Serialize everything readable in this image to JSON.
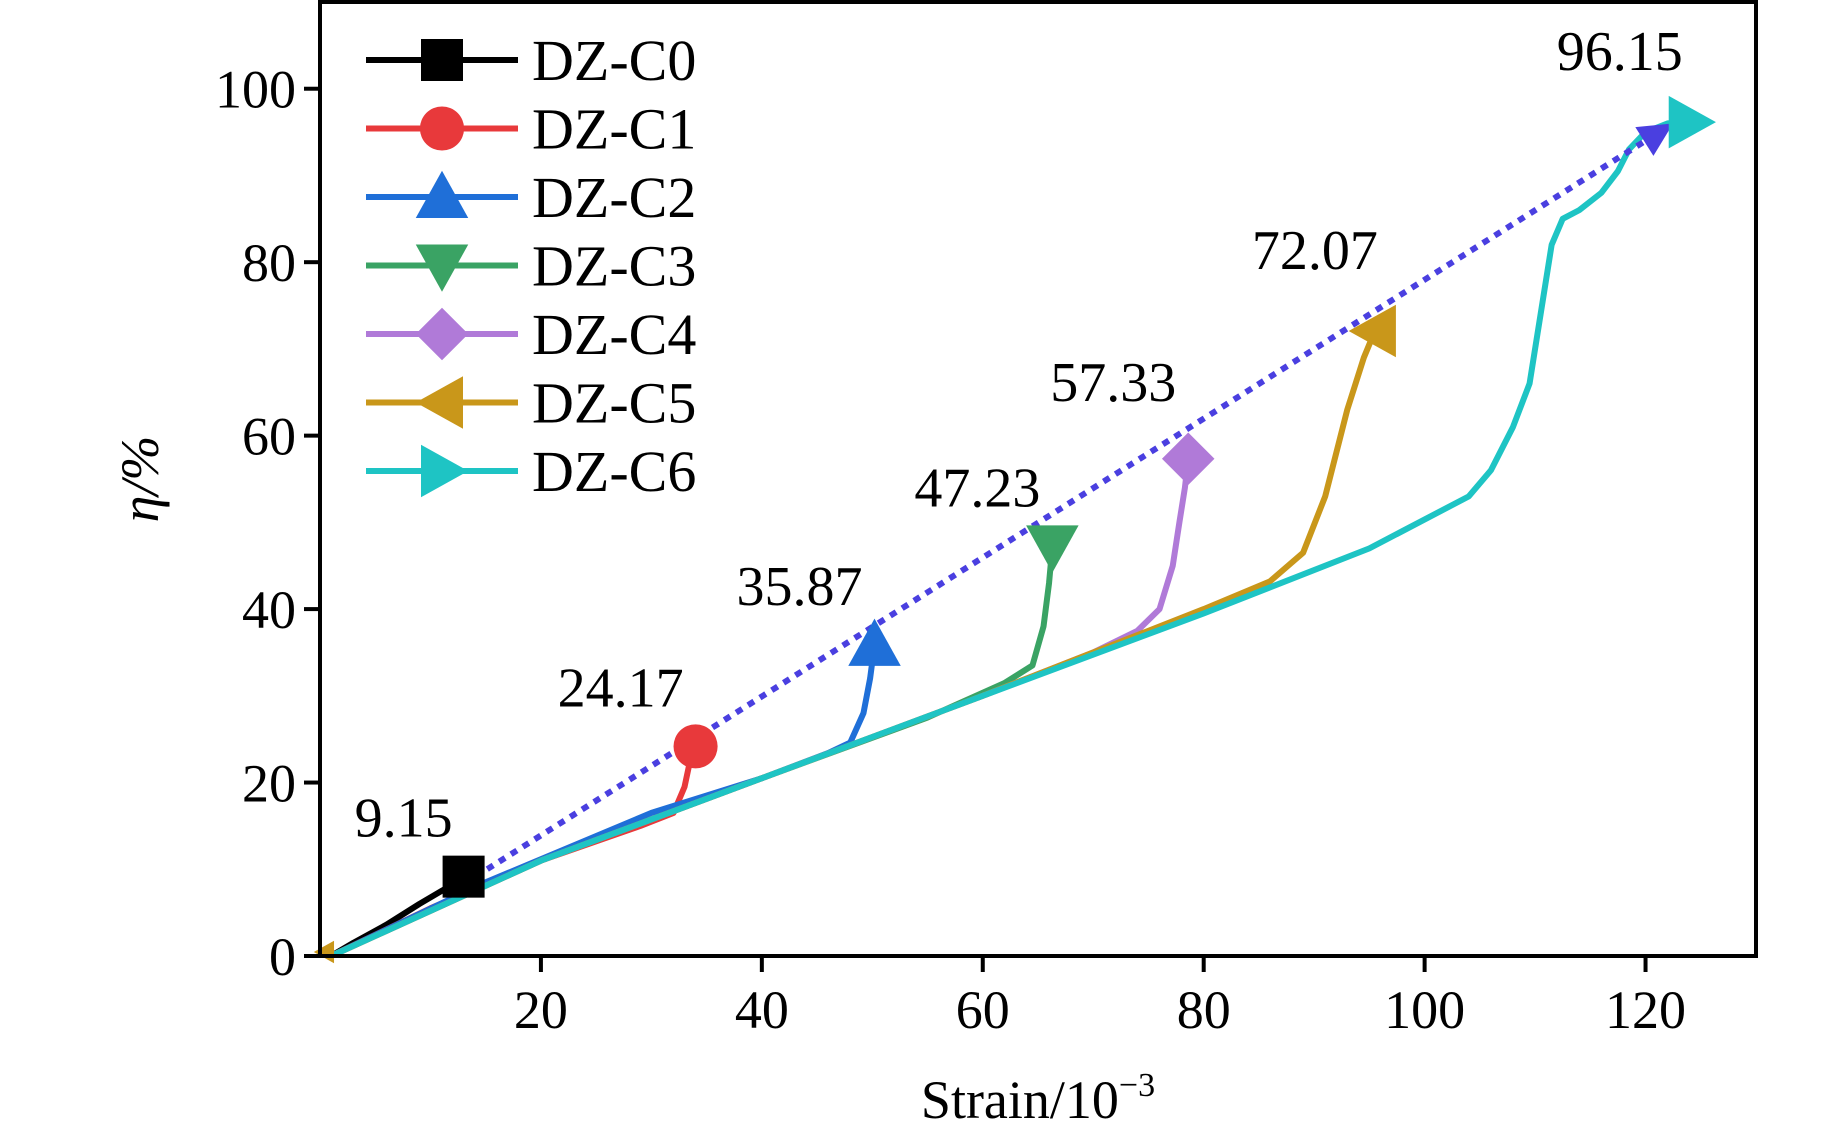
{
  "chart_data": {
    "type": "line",
    "xlabel": "Strain/10",
    "xlabel_exponent": "−3",
    "ylabel": "η/%",
    "xlim": [
      0,
      130
    ],
    "ylim": [
      0,
      110
    ],
    "x_ticks": [
      20,
      40,
      60,
      80,
      100,
      120
    ],
    "y_ticks": [
      0,
      20,
      40,
      60,
      80,
      100
    ],
    "grid": false,
    "legend_position": "top-left",
    "series": [
      {
        "name": "DZ-C0",
        "color": "#000000",
        "marker": "square",
        "points": [
          [
            1,
            0
          ],
          [
            3,
            1.5
          ],
          [
            6,
            3.6
          ],
          [
            9,
            6.0
          ],
          [
            11,
            7.5
          ],
          [
            12.5,
            8.6
          ],
          [
            13,
            9.15
          ]
        ]
      },
      {
        "name": "DZ-C1",
        "color": "#e8393b",
        "marker": "circle",
        "points": [
          [
            1,
            0
          ],
          [
            10,
            5.5
          ],
          [
            20,
            11
          ],
          [
            29,
            15.0
          ],
          [
            32,
            16.5
          ],
          [
            33,
            19.5
          ],
          [
            33.5,
            22.5
          ],
          [
            34,
            24.17
          ]
        ]
      },
      {
        "name": "DZ-C2",
        "color": "#1f6fd8",
        "marker": "triangle-up",
        "points": [
          [
            1,
            0
          ],
          [
            15,
            8.5
          ],
          [
            30,
            16.5
          ],
          [
            40,
            20.5
          ],
          [
            46,
            23.4
          ],
          [
            48,
            24.6
          ],
          [
            49.2,
            28
          ],
          [
            49.8,
            32
          ],
          [
            50.2,
            35.87
          ]
        ]
      },
      {
        "name": "DZ-C3",
        "color": "#3aa364",
        "marker": "triangle-down",
        "points": [
          [
            1,
            0
          ],
          [
            20,
            11
          ],
          [
            40,
            20.5
          ],
          [
            55,
            27.5
          ],
          [
            62,
            31.5
          ],
          [
            64.5,
            33.5
          ],
          [
            65.5,
            38
          ],
          [
            66,
            43
          ],
          [
            66.3,
            47.23
          ]
        ]
      },
      {
        "name": "DZ-C4",
        "color": "#b07ad8",
        "marker": "diamond",
        "points": [
          [
            1,
            0
          ],
          [
            20,
            11
          ],
          [
            40,
            20.5
          ],
          [
            60,
            30
          ],
          [
            70,
            35
          ],
          [
            74,
            37.5
          ],
          [
            76,
            40
          ],
          [
            77.2,
            45
          ],
          [
            77.8,
            50
          ],
          [
            78.3,
            54
          ],
          [
            78.6,
            57.33
          ]
        ]
      },
      {
        "name": "DZ-C5",
        "color": "#c9971a",
        "marker": "triangle-left",
        "points": [
          [
            1,
            0
          ],
          [
            20,
            11
          ],
          [
            40,
            20.5
          ],
          [
            60,
            30
          ],
          [
            80,
            40
          ],
          [
            86,
            43.2
          ],
          [
            89,
            46.5
          ],
          [
            91,
            53
          ],
          [
            93,
            63
          ],
          [
            94.5,
            69
          ],
          [
            95.5,
            72.07
          ]
        ]
      },
      {
        "name": "DZ-C6",
        "color": "#1ec4c4",
        "marker": "triangle-right",
        "points": [
          [
            1,
            0
          ],
          [
            20,
            11
          ],
          [
            40,
            20.5
          ],
          [
            60,
            30
          ],
          [
            80,
            39.5
          ],
          [
            95,
            47
          ],
          [
            104,
            53
          ],
          [
            106,
            56
          ],
          [
            108,
            61
          ],
          [
            109.5,
            66
          ],
          [
            110.5,
            74
          ],
          [
            111.5,
            82
          ],
          [
            112.5,
            85
          ],
          [
            114,
            86
          ],
          [
            116,
            88
          ],
          [
            117.5,
            90.5
          ],
          [
            118.5,
            93
          ],
          [
            120,
            95
          ],
          [
            122,
            96
          ],
          [
            124,
            96.15
          ]
        ]
      }
    ],
    "trend_line": {
      "color": "#4a3fe0",
      "style": "dotted",
      "points": [
        [
          13,
          8.3
        ],
        [
          122.5,
          96.0
        ]
      ]
    },
    "annotations": [
      {
        "text": "9.15",
        "x": 13,
        "y": 9.15
      },
      {
        "text": "24.17",
        "x": 34,
        "y": 24.17
      },
      {
        "text": "35.87",
        "x": 50.2,
        "y": 35.87
      },
      {
        "text": "47.23",
        "x": 66.3,
        "y": 47.23
      },
      {
        "text": "57.33",
        "x": 78.6,
        "y": 57.33
      },
      {
        "text": "72.07",
        "x": 95.5,
        "y": 72.07
      },
      {
        "text": "96.15",
        "x": 124,
        "y": 96.15
      }
    ]
  }
}
